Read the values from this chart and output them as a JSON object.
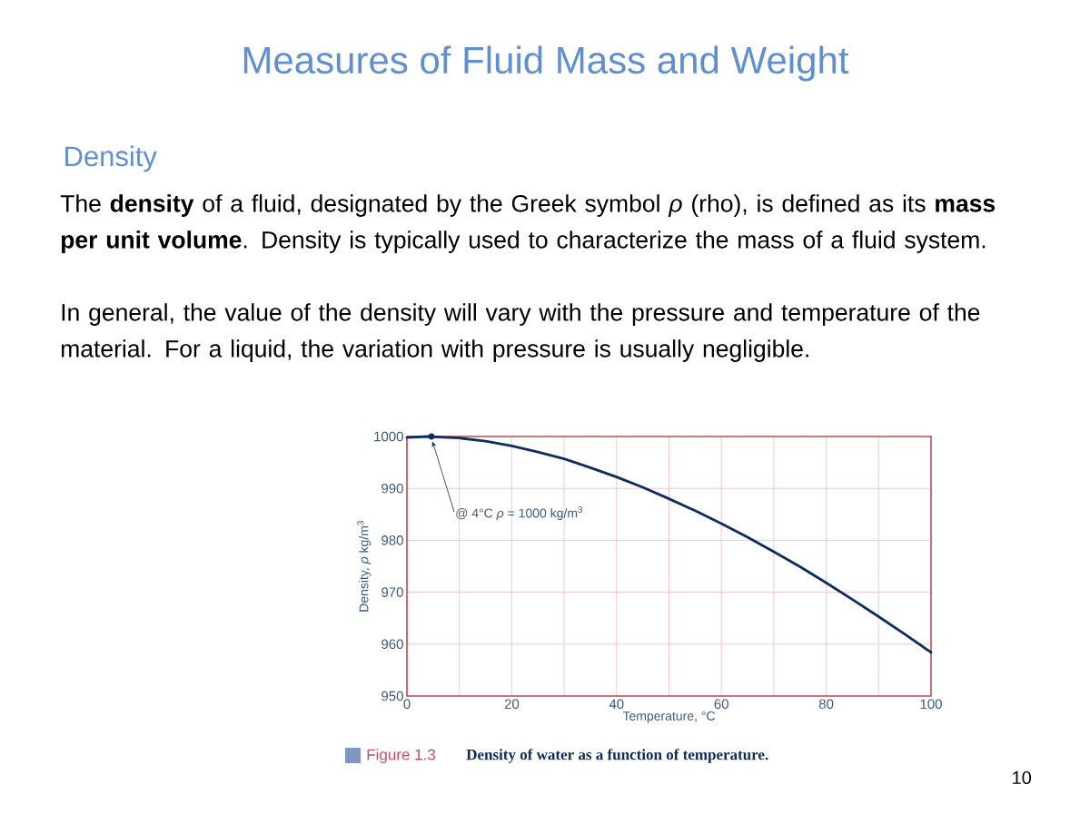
{
  "chart_data": {
    "type": "line",
    "title": "Measures of Fluid Mass and Weight",
    "subtitle": "Density",
    "xlabel": "Temperature, °C",
    "ylabel": "Density, *ρ* kg/m$^{3}$",
    "x": [
      0,
      2,
      4,
      6,
      8,
      10,
      15,
      20,
      25,
      30,
      35,
      40,
      45,
      50,
      55,
      60,
      65,
      70,
      75,
      80,
      85,
      90,
      95,
      100
    ],
    "series": [
      {
        "color": "#0d2d5a",
        "values": [
          999.8,
          999.9,
          1000,
          999.9,
          999.8,
          999.7,
          999.1,
          998.2,
          997.0,
          995.7,
          994.0,
          992.2,
          990.2,
          988.0,
          985.7,
          983.2,
          980.6,
          977.8,
          974.9,
          971.8,
          968.6,
          965.3,
          961.9,
          958.4
        ]
      }
    ],
    "xlim": [
      0,
      100
    ],
    "ylim": [
      950,
      1000
    ],
    "xticks": [
      0,
      {
        "value": 10,
        "label": null
      },
      20,
      {
        "value": 30,
        "label": null
      },
      40,
      {
        "value": 50,
        "label": null
      },
      60,
      {
        "value": 70,
        "label": null
      },
      80,
      {
        "value": 90,
        "label": null
      },
      100
    ],
    "yticks": [
      950,
      960,
      970,
      980,
      990,
      1000
    ],
    "grid": true,
    "annotations": [
      "The **density** of a fluid, designated by the Greek symbol *ρ* (rho), is defined as its **mass per unit volume**. Density is typically used to characterize the mass of a fluid system.",
      "In general, the value of the density will vary with the pressure and temperature of the material. For a liquid, the variation with pressure is usually negligible.",
      "@ 4°C *ρ* = 1000 kg/m$^{3}$",
      "Figure 1.3",
      "Density of water as a function of temperature.",
      "10"
    ]
  }
}
